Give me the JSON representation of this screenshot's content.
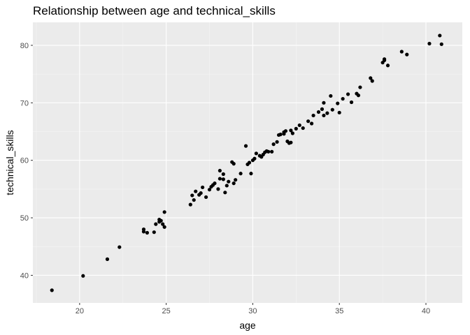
{
  "chart_data": {
    "type": "scatter",
    "title": "Relationship between age and technical_skills",
    "xlabel": "age",
    "ylabel": "technical_skills",
    "xlim": [
      17.3,
      42.1
    ],
    "ylim": [
      35.2,
      84.0
    ],
    "x_ticks": [
      20,
      25,
      30,
      35,
      40
    ],
    "y_ticks": [
      40,
      50,
      60,
      70,
      80
    ],
    "grid": true,
    "legend": "none",
    "colors": {
      "panel": "#ebebeb",
      "grid_major": "#ffffff",
      "grid_minor": "#f5f5f5",
      "point": "#000000"
    },
    "points": [
      [
        18.4,
        37.4
      ],
      [
        20.2,
        39.9
      ],
      [
        21.6,
        42.8
      ],
      [
        22.3,
        44.9
      ],
      [
        23.7,
        47.6
      ],
      [
        23.7,
        48.0
      ],
      [
        23.9,
        47.4
      ],
      [
        24.3,
        47.5
      ],
      [
        24.4,
        48.9
      ],
      [
        24.6,
        49.3
      ],
      [
        24.6,
        49.7
      ],
      [
        24.7,
        49.5
      ],
      [
        24.8,
        48.9
      ],
      [
        24.9,
        48.4
      ],
      [
        24.9,
        51.0
      ],
      [
        26.4,
        52.3
      ],
      [
        26.5,
        53.9
      ],
      [
        26.6,
        53.1
      ],
      [
        26.7,
        54.6
      ],
      [
        26.9,
        54.0
      ],
      [
        27.0,
        54.3
      ],
      [
        27.1,
        55.3
      ],
      [
        27.3,
        53.6
      ],
      [
        27.5,
        54.9
      ],
      [
        27.6,
        55.4
      ],
      [
        27.7,
        55.7
      ],
      [
        27.8,
        56.0
      ],
      [
        28.0,
        55.0
      ],
      [
        28.1,
        56.8
      ],
      [
        28.1,
        58.2
      ],
      [
        28.3,
        56.7
      ],
      [
        28.3,
        57.6
      ],
      [
        28.4,
        54.4
      ],
      [
        28.5,
        55.6
      ],
      [
        28.6,
        56.3
      ],
      [
        28.8,
        59.7
      ],
      [
        28.9,
        59.4
      ],
      [
        28.9,
        56.0
      ],
      [
        29.0,
        56.6
      ],
      [
        29.3,
        57.7
      ],
      [
        29.6,
        62.5
      ],
      [
        29.7,
        59.3
      ],
      [
        29.8,
        59.6
      ],
      [
        29.9,
        57.7
      ],
      [
        30.0,
        60.0
      ],
      [
        30.1,
        60.3
      ],
      [
        30.2,
        61.2
      ],
      [
        30.4,
        60.8
      ],
      [
        30.5,
        60.6
      ],
      [
        30.6,
        61.0
      ],
      [
        30.7,
        61.4
      ],
      [
        30.8,
        61.6
      ],
      [
        30.9,
        61.5
      ],
      [
        31.1,
        61.5
      ],
      [
        31.2,
        62.8
      ],
      [
        31.4,
        63.2
      ],
      [
        31.5,
        64.4
      ],
      [
        31.6,
        64.5
      ],
      [
        31.8,
        64.9
      ],
      [
        31.8,
        64.6
      ],
      [
        31.9,
        65.1
      ],
      [
        32.0,
        63.3
      ],
      [
        32.1,
        63.0
      ],
      [
        32.2,
        63.1
      ],
      [
        32.2,
        65.2
      ],
      [
        32.3,
        64.7
      ],
      [
        32.5,
        65.5
      ],
      [
        32.7,
        66.1
      ],
      [
        32.9,
        65.6
      ],
      [
        33.2,
        66.8
      ],
      [
        33.4,
        66.4
      ],
      [
        33.5,
        67.8
      ],
      [
        33.8,
        68.4
      ],
      [
        34.0,
        68.9
      ],
      [
        34.1,
        67.8
      ],
      [
        34.1,
        70.0
      ],
      [
        34.3,
        68.2
      ],
      [
        34.5,
        71.2
      ],
      [
        34.6,
        68.8
      ],
      [
        34.9,
        69.9
      ],
      [
        35.0,
        68.3
      ],
      [
        35.2,
        70.7
      ],
      [
        35.5,
        71.5
      ],
      [
        35.7,
        70.1
      ],
      [
        36.0,
        71.6
      ],
      [
        36.1,
        71.3
      ],
      [
        36.2,
        72.7
      ],
      [
        36.8,
        74.3
      ],
      [
        36.9,
        73.8
      ],
      [
        37.5,
        77.0
      ],
      [
        37.6,
        77.4
      ],
      [
        37.6,
        77.6
      ],
      [
        37.8,
        76.5
      ],
      [
        38.6,
        78.9
      ],
      [
        38.9,
        78.4
      ],
      [
        40.2,
        80.3
      ],
      [
        40.8,
        81.7
      ],
      [
        40.9,
        80.2
      ]
    ]
  }
}
